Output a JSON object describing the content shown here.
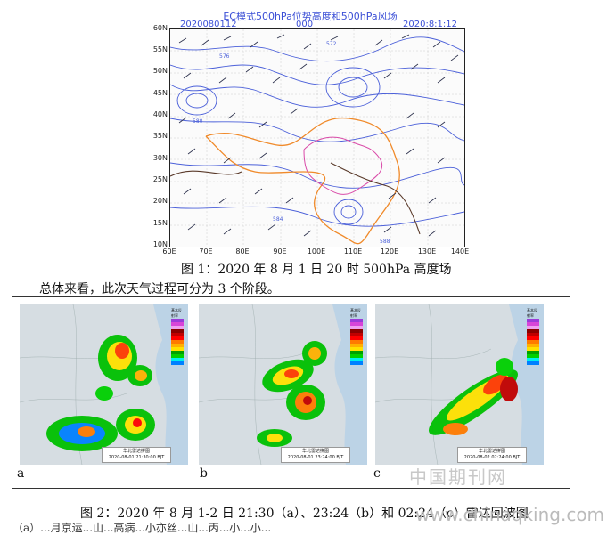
{
  "figure1": {
    "title": "EC模式500hPa位势高度和500hPa风场",
    "date_left": "2020080112",
    "code_center": "000",
    "date_right": "2020:8:1:12",
    "lat_labels": [
      "60N",
      "55N",
      "50N",
      "45N",
      "40N",
      "35N",
      "30N",
      "25N",
      "20N",
      "15N",
      "10N"
    ],
    "lon_labels": [
      "60E",
      "70E",
      "80E",
      "90E",
      "100E",
      "110E",
      "120E",
      "130E",
      "140E"
    ],
    "contour_labels": [
      "572",
      "576",
      "580",
      "584",
      "588"
    ],
    "caption": "图 1：2020 年 8 月 1 日 20 时 500hPa 高度场",
    "colors": {
      "height_contour": "#4a5fd9",
      "border": "#d9a"
    }
  },
  "paragraph": "总体来看，此次天气过程可分为 3 个阶段。",
  "figure2": {
    "panels": [
      {
        "label": "a",
        "legend_title": "基本反射率",
        "stamp_name": "华北雷达拼图",
        "stamp_time": "2020-08-01 21:30:00 BJT"
      },
      {
        "label": "b",
        "legend_title": "基本反射率",
        "stamp_name": "华北雷达拼图",
        "stamp_time": "2020-08-01 23:24:00 BJT"
      },
      {
        "label": "c",
        "legend_title": "基本反射率",
        "stamp_name": "华北雷达拼图",
        "stamp_time": "2020-08-02 02:24:00 BJT"
      }
    ],
    "legend_colors": [
      "#9b3bd9",
      "#d845d8",
      "#f0a0f0",
      "#8a0000",
      "#c00000",
      "#ff0000",
      "#ff7a00",
      "#ffb000",
      "#ffe100",
      "#00a000",
      "#00d000",
      "#00f0f0",
      "#0080ff"
    ],
    "caption": "图 2：2020 年 8 月 1-2 日 21:30（a）、23:24（b）和 02:24（c）雷达回波图"
  },
  "watermark_cn": "中国期刊网",
  "watermark_url": "www.chinaqking.com",
  "bottom_partial": "（a）...月京运...山...高病...小亦丝...山...丙...小...小..."
}
